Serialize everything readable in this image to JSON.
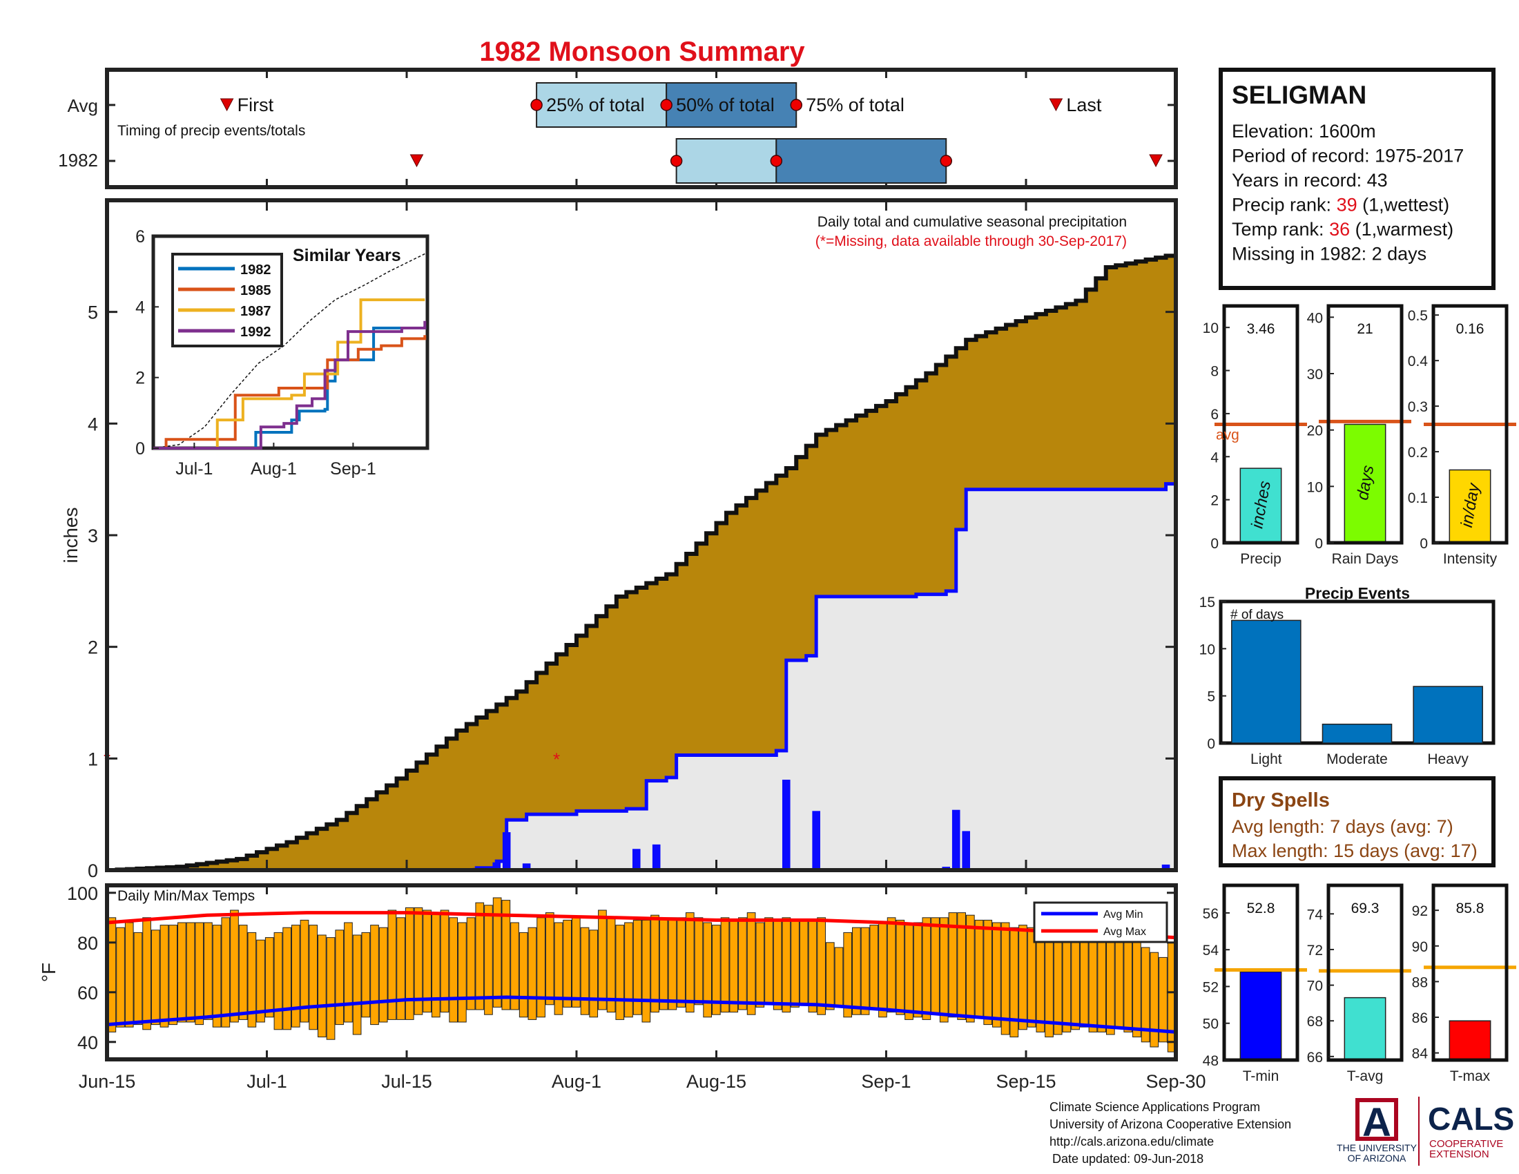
{
  "page": {
    "title": "1982 Monsoon Summary",
    "footer": [
      "Climate Science Applications Program",
      "University of Arizona Cooperative Extension",
      "http://cals.arizona.edu/climate",
      "Date updated: 09-Jun-2018"
    ],
    "logos": {
      "ua_letter": "A",
      "ua_name": [
        "THE UNIVERSITY",
        "OF ARIZONA"
      ],
      "cals": "CALS",
      "cals_sub": [
        "COOPERATIVE",
        "EXTENSION"
      ]
    },
    "colors": {
      "title_red": "#e0101a",
      "cumulative_fill": "#b8860b",
      "observed_fill": "#e8e8e8",
      "observed_line": "#0a0aff",
      "temp_bar": "#ffa500",
      "avg_max_line": "#ff0000",
      "avg_min_line": "#0000ff",
      "light_blue": "#acd6e6",
      "steel_blue": "#4682b4",
      "event_bar": "#0072bd",
      "dry_spell_brown": "#8b4513"
    }
  },
  "station": {
    "name": "SELIGMAN",
    "lines": [
      {
        "prefix": "Elevation: 1600m"
      },
      {
        "prefix": "Period of record: 1975-2017"
      },
      {
        "prefix": "Years in record: 43"
      },
      {
        "prefix": "Precip rank: ",
        "value": "39",
        "suffix": " (1,wettest)"
      },
      {
        "prefix": "Temp rank: ",
        "value": "36",
        "suffix": " (1,warmest)"
      },
      {
        "prefix": "Missing in 1982: 2 days"
      }
    ]
  },
  "dry_spells": {
    "title": "Dry Spells",
    "lines": [
      "Avg length: 7 days (avg: 7)",
      "Max length: 15 days (avg: 17)"
    ]
  },
  "chart_data": [
    {
      "id": "timing",
      "type": "range",
      "label": "Timing of precip events/totals",
      "rows": [
        "Avg",
        "1982"
      ],
      "markers": {
        "Avg": {
          "first": "Jun-27",
          "q25": "Jul-28",
          "q50": "Aug-10",
          "q75": "Aug-23",
          "last": "Sep-18"
        },
        "1982": {
          "first": "Jul-16",
          "q25": "Aug-11",
          "q50": "Aug-21",
          "q75": "Sep-7",
          "last": "Sep-28"
        }
      },
      "marker_labels": {
        "first": "First",
        "q25": "25% of total",
        "q50": "50% of total",
        "q75": "75% of total",
        "last": "Last"
      }
    },
    {
      "id": "precip",
      "type": "area",
      "title": "Daily total and cumulative seasonal precipitation",
      "note": "(*=Missing, data available through 30-Sep-2017)",
      "ylabel": "inches",
      "ylim": [
        0,
        6
      ],
      "yticks": [
        0,
        1,
        2,
        3,
        4,
        5
      ],
      "xticks": [
        "Jun-15",
        "Jul-1",
        "Jul-15",
        "Aug-1",
        "Aug-15",
        "Sep-1",
        "Sep-15",
        "Sep-30"
      ],
      "avg_cumulative": [
        [
          "Jun-15",
          0.0
        ],
        [
          "Jun-22",
          0.03
        ],
        [
          "Jun-28",
          0.1
        ],
        [
          "Jul-3",
          0.25
        ],
        [
          "Jul-8",
          0.45
        ],
        [
          "Jul-14",
          0.82
        ],
        [
          "Jul-20",
          1.25
        ],
        [
          "Jul-26",
          1.6
        ],
        [
          "Aug-1",
          2.1
        ],
        [
          "Aug-5",
          2.45
        ],
        [
          "Aug-10",
          2.65
        ],
        [
          "Aug-16",
          3.2
        ],
        [
          "Aug-22",
          3.6
        ],
        [
          "Aug-25",
          3.9
        ],
        [
          "Sep-1",
          4.2
        ],
        [
          "Sep-5",
          4.45
        ],
        [
          "Sep-9",
          4.75
        ],
        [
          "Sep-15",
          4.95
        ],
        [
          "Sep-20",
          5.1
        ],
        [
          "Sep-23",
          5.4
        ],
        [
          "Sep-30",
          5.52
        ]
      ],
      "observed_cumulative": [
        [
          "Jun-15",
          0.0
        ],
        [
          "Jul-15",
          0.0
        ],
        [
          "Jul-22",
          0.02
        ],
        [
          "Jul-24",
          0.08
        ],
        [
          "Jul-25",
          0.45
        ],
        [
          "Jul-27",
          0.5
        ],
        [
          "Aug-1",
          0.53
        ],
        [
          "Aug-6",
          0.55
        ],
        [
          "Aug-8",
          0.8
        ],
        [
          "Aug-10",
          0.83
        ],
        [
          "Aug-11",
          1.03
        ],
        [
          "Aug-21",
          1.07
        ],
        [
          "Aug-22",
          1.88
        ],
        [
          "Aug-24",
          1.92
        ],
        [
          "Aug-25",
          2.45
        ],
        [
          "Sep-4",
          2.47
        ],
        [
          "Sep-7",
          2.5
        ],
        [
          "Sep-8",
          3.05
        ],
        [
          "Sep-9",
          3.41
        ],
        [
          "Sep-28",
          3.41
        ],
        [
          "Sep-29",
          3.46
        ],
        [
          "Sep-30",
          3.46
        ]
      ],
      "daily": [
        [
          "Jul-22",
          0.02
        ],
        [
          "Jul-24",
          0.07
        ],
        [
          "Jul-25",
          0.34
        ],
        [
          "Jul-27",
          0.06
        ],
        [
          "Aug-7",
          0.19
        ],
        [
          "Aug-9",
          0.23
        ],
        [
          "Aug-22",
          0.81
        ],
        [
          "Aug-25",
          0.53
        ],
        [
          "Sep-7",
          0.03
        ],
        [
          "Sep-8",
          0.54
        ],
        [
          "Sep-9",
          0.35
        ],
        [
          "Sep-29",
          0.05
        ]
      ],
      "missing": [
        [
          "Jun-15",
          1.0
        ],
        [
          "Jul-30",
          1.0
        ]
      ]
    },
    {
      "id": "similar",
      "type": "line",
      "title": "Similar Years",
      "ylim": [
        0,
        6
      ],
      "yticks": [
        0,
        2,
        4,
        6
      ],
      "xticks": [
        "Jul-1",
        "Aug-1",
        "Sep-1"
      ],
      "series": [
        {
          "name": "1982",
          "color": "#0072bd",
          "values": [
            [
              "Jun-15",
              0
            ],
            [
              "Jul-22",
              0
            ],
            [
              "Jul-25",
              0.45
            ],
            [
              "Aug-8",
              0.8
            ],
            [
              "Aug-11",
              1.05
            ],
            [
              "Aug-21",
              1.1
            ],
            [
              "Aug-22",
              1.9
            ],
            [
              "Aug-25",
              2.5
            ],
            [
              "Sep-7",
              2.5
            ],
            [
              "Sep-9",
              3.4
            ],
            [
              "Sep-29",
              3.46
            ]
          ]
        },
        {
          "name": "1985",
          "color": "#d95319",
          "values": [
            [
              "Jun-15",
              0
            ],
            [
              "Jun-20",
              0.25
            ],
            [
              "Jul-10",
              0.25
            ],
            [
              "Jul-17",
              1.5
            ],
            [
              "Aug-3",
              1.7
            ],
            [
              "Aug-10",
              1.7
            ],
            [
              "Aug-22",
              2.5
            ],
            [
              "Aug-28",
              2.5
            ],
            [
              "Sep-3",
              2.8
            ],
            [
              "Sep-12",
              2.9
            ],
            [
              "Sep-20",
              3.1
            ],
            [
              "Sep-29",
              3.2
            ]
          ]
        },
        {
          "name": "1987",
          "color": "#edb120",
          "values": [
            [
              "Jun-15",
              0
            ],
            [
              "Jul-7",
              0
            ],
            [
              "Jul-10",
              0.8
            ],
            [
              "Jul-20",
              1.4
            ],
            [
              "Aug-8",
              1.5
            ],
            [
              "Aug-13",
              2.1
            ],
            [
              "Aug-23",
              2.1
            ],
            [
              "Aug-26",
              3.0
            ],
            [
              "Sep-1",
              3.0
            ],
            [
              "Sep-4",
              4.2
            ],
            [
              "Sep-29",
              4.2
            ]
          ]
        },
        {
          "name": "1992",
          "color": "#7e2f8e",
          "values": [
            [
              "Jun-15",
              0
            ],
            [
              "Jul-23",
              0
            ],
            [
              "Jul-27",
              0.6
            ],
            [
              "Aug-5",
              0.7
            ],
            [
              "Aug-10",
              1.2
            ],
            [
              "Aug-16",
              1.4
            ],
            [
              "Aug-21",
              2.2
            ],
            [
              "Aug-25",
              2.5
            ],
            [
              "Aug-30",
              3.3
            ],
            [
              "Sep-20",
              3.4
            ],
            [
              "Sep-29",
              3.6
            ]
          ]
        }
      ],
      "avg_series": [
        [
          "Jun-15",
          0
        ],
        [
          "Jun-25",
          0.1
        ],
        [
          "Jul-5",
          0.6
        ],
        [
          "Jul-15",
          1.5
        ],
        [
          "Jul-26",
          2.4
        ],
        [
          "Aug-5",
          2.9
        ],
        [
          "Aug-15",
          3.6
        ],
        [
          "Aug-25",
          4.2
        ],
        [
          "Sep-5",
          4.6
        ],
        [
          "Sep-15",
          5.0
        ],
        [
          "Sep-29",
          5.5
        ]
      ]
    },
    {
      "id": "precip_bars",
      "type": "bar",
      "panels": [
        {
          "label": "Precip",
          "value": 3.46,
          "value_label": "3.46",
          "avg": 5.5,
          "avg_label": "avg",
          "ylim": [
            0,
            11
          ],
          "yticks": [
            0,
            2,
            4,
            6,
            8,
            10
          ],
          "unit": "inches",
          "color": "#40e0d0"
        },
        {
          "label": "Rain Days",
          "value": 21,
          "value_label": "21",
          "avg": 21.5,
          "ylim": [
            0,
            42
          ],
          "yticks": [
            0,
            10,
            20,
            30,
            40
          ],
          "unit": "days",
          "color": "#7cfc00"
        },
        {
          "label": "Intensity",
          "value": 0.16,
          "value_label": "0.16",
          "avg": 0.26,
          "ylim": [
            0,
            0.52
          ],
          "yticks": [
            0,
            0.1,
            0.2,
            0.3,
            0.4,
            0.5
          ],
          "unit": "in/day",
          "color": "#ffd700"
        }
      ]
    },
    {
      "id": "events",
      "type": "bar",
      "title": "Precip Events",
      "ylabel": "# of days",
      "categories": [
        "Light",
        "Moderate",
        "Heavy"
      ],
      "values": [
        13,
        2,
        6
      ],
      "ylim": [
        0,
        15
      ],
      "yticks": [
        0,
        5,
        10,
        15
      ]
    },
    {
      "id": "temps",
      "type": "bar",
      "title": "Daily Min/Max Temps",
      "ylabel": "°F",
      "ylim": [
        33,
        103
      ],
      "yticks": [
        40,
        60,
        80,
        100
      ],
      "legend": [
        "Avg Min",
        "Avg Max"
      ],
      "avg_max": [
        [
          "Jun-15",
          88
        ],
        [
          "Jun-25",
          91
        ],
        [
          "Jul-5",
          92
        ],
        [
          "Jul-15",
          92
        ],
        [
          "Jul-25",
          91
        ],
        [
          "Aug-5",
          90
        ],
        [
          "Aug-15",
          89
        ],
        [
          "Aug-25",
          89
        ],
        [
          "Sep-1",
          88
        ],
        [
          "Sep-10",
          86
        ],
        [
          "Sep-20",
          84
        ],
        [
          "Sep-30",
          82
        ]
      ],
      "avg_min": [
        [
          "Jun-15",
          47
        ],
        [
          "Jun-25",
          50
        ],
        [
          "Jul-5",
          54
        ],
        [
          "Jul-15",
          57
        ],
        [
          "Jul-25",
          58
        ],
        [
          "Aug-5",
          57
        ],
        [
          "Aug-15",
          56
        ],
        [
          "Aug-25",
          55
        ],
        [
          "Sep-1",
          53
        ],
        [
          "Sep-10",
          50
        ],
        [
          "Sep-20",
          47
        ],
        [
          "Sep-30",
          44
        ]
      ],
      "daily_max": [
        90,
        86,
        88,
        84,
        90,
        85,
        87,
        87,
        88,
        88,
        88,
        88,
        87,
        90,
        93,
        87,
        84,
        81,
        82,
        84,
        86,
        87,
        89,
        87,
        83,
        82,
        85,
        88,
        83,
        84,
        87,
        86,
        93,
        90,
        94,
        94,
        93,
        92,
        93,
        90,
        88,
        90,
        96,
        95,
        98,
        97,
        88,
        84,
        86,
        90,
        92,
        88,
        89,
        90,
        86,
        85,
        93,
        90,
        87,
        88,
        89,
        89,
        91,
        90,
        90,
        90,
        92,
        90,
        88,
        87,
        90,
        89,
        90,
        92,
        88,
        90,
        89,
        90,
        89,
        89,
        89,
        90,
        80,
        78,
        84,
        86,
        86,
        87,
        88,
        90,
        89,
        87,
        88,
        90,
        90,
        90,
        92,
        92,
        91,
        89,
        89,
        88,
        88,
        86,
        87,
        86,
        85,
        87,
        84,
        82,
        83,
        84,
        85,
        85,
        82,
        82,
        83,
        80,
        78,
        76,
        74,
        80
      ],
      "daily_min": [
        44,
        46,
        46,
        47,
        45,
        47,
        46,
        47,
        48,
        48,
        47,
        49,
        46,
        46,
        48,
        49,
        46,
        48,
        50,
        45,
        45,
        46,
        48,
        45,
        42,
        41,
        47,
        48,
        43,
        50,
        47,
        48,
        49,
        49,
        49,
        51,
        52,
        50,
        52,
        48,
        48,
        53,
        53,
        51,
        54,
        53,
        53,
        50,
        49,
        50,
        55,
        51,
        54,
        54,
        51,
        50,
        53,
        52,
        49,
        50,
        51,
        48,
        52,
        53,
        53,
        54,
        52,
        55,
        50,
        51,
        52,
        52,
        53,
        51,
        54,
        55,
        53,
        52,
        54,
        55,
        52,
        51,
        53,
        54,
        50,
        51,
        51,
        53,
        50,
        52,
        51,
        49,
        50,
        49,
        51,
        48,
        50,
        49,
        48,
        50,
        47,
        46,
        43,
        42,
        45,
        46,
        44,
        42,
        43,
        44,
        45,
        46,
        44,
        44,
        43,
        46,
        44,
        42,
        40,
        38,
        40,
        36
      ]
    },
    {
      "id": "temp_bars",
      "type": "bar",
      "panels": [
        {
          "label": "T-min",
          "value": 52.8,
          "value_label": "52.8",
          "avg": 52.9,
          "ylim": [
            48,
            57.5
          ],
          "yticks": [
            48,
            50,
            52,
            54,
            56
          ],
          "color": "#0000ff"
        },
        {
          "label": "T-avg",
          "value": 69.3,
          "value_label": "69.3",
          "avg": 70.8,
          "ylim": [
            65.8,
            75.6
          ],
          "yticks": [
            66,
            68,
            70,
            72,
            74
          ],
          "color": "#40e0d0"
        },
        {
          "label": "T-max",
          "value": 85.8,
          "value_label": "85.8",
          "avg": 88.8,
          "ylim": [
            83.6,
            93.4
          ],
          "yticks": [
            84,
            86,
            88,
            90,
            92
          ],
          "color": "#ff0000"
        }
      ]
    }
  ]
}
